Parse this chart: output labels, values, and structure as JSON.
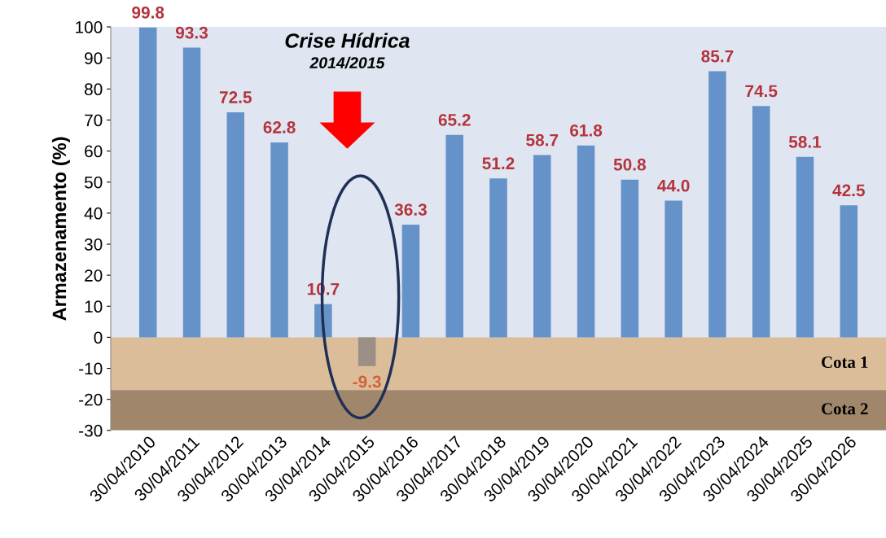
{
  "chart_data": {
    "type": "bar",
    "ylabel": "Armazenamento (%)",
    "categories": [
      "30/04/2010",
      "30/04/2011",
      "30/04/2012",
      "30/04/2013",
      "30/04/2014",
      "30/04/2015",
      "30/04/2016",
      "30/04/2017",
      "30/04/2018",
      "30/04/2019",
      "30/04/2020",
      "30/04/2021",
      "30/04/2022",
      "30/04/2023",
      "30/04/2024",
      "30/04/2025",
      "30/04/2026"
    ],
    "values": [
      99.8,
      93.3,
      72.5,
      62.8,
      10.7,
      -9.3,
      36.3,
      65.2,
      51.2,
      58.7,
      61.8,
      50.8,
      44.0,
      85.7,
      74.5,
      58.1,
      42.5
    ],
    "colors": [
      "#6592c8",
      "#6592c8",
      "#6592c8",
      "#6592c8",
      "#6592c8",
      "#9b8f86",
      "#6592c8",
      "#6592c8",
      "#6592c8",
      "#6592c8",
      "#6592c8",
      "#6592c8",
      "#6592c8",
      "#6592c8",
      "#6592c8",
      "#6592c8",
      "#6592c8"
    ],
    "value_labels": [
      "99.8",
      "93.3",
      "72.5",
      "62.8",
      "10.7",
      "-9.3",
      "36.3",
      "65.2",
      "51.2",
      "58.7",
      "61.8",
      "50.8",
      "44.0",
      "85.7",
      "74.5",
      "58.1",
      "42.5"
    ],
    "ylim": [
      -30,
      100
    ],
    "yticks": [
      -30,
      -20,
      -10,
      0,
      10,
      20,
      30,
      40,
      50,
      60,
      70,
      80,
      90,
      100
    ],
    "bands": [
      {
        "axis": "y",
        "from": -17,
        "to": 0,
        "label": "Cota 1",
        "color": "#dcbd9a"
      },
      {
        "axis": "y",
        "from": -30,
        "to": -17,
        "label": "Cota 2",
        "color": "#a0866b"
      }
    ],
    "annotations": [
      "Crise Hídrica",
      "2014/2015"
    ],
    "grid": false,
    "legend": false
  }
}
